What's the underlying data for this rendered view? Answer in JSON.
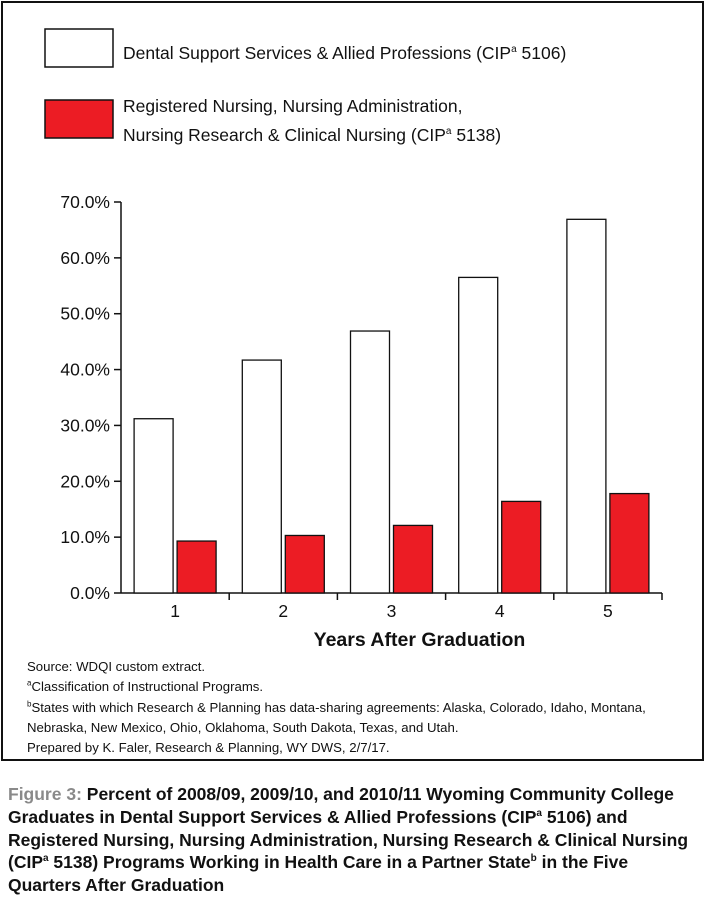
{
  "chart_data": {
    "type": "bar",
    "categories": [
      "1",
      "2",
      "3",
      "4",
      "5"
    ],
    "series": [
      {
        "name": "Dental Support Services & Allied Professions (CIPᵃ 5106)",
        "name_main": "Dental Support Services & Allied Professions (CIP",
        "name_sup": "a",
        "name_tail": " 5106)",
        "color": "#ffffff",
        "values": [
          31.2,
          41.7,
          46.9,
          56.5,
          66.9
        ]
      },
      {
        "name": "Registered Nursing, Nursing Administration, Nursing Research & Clinical Nursing (CIPᵃ 5138)",
        "name_line1": "Registered Nursing, Nursing Administration,",
        "name_line2_main": "Nursing Research & Clinical Nursing (CIP",
        "name_sup": "a",
        "name_line2_tail": " 5138)",
        "color": "#ec1c24",
        "values": [
          9.3,
          10.3,
          12.1,
          16.4,
          17.8
        ]
      }
    ],
    "xlabel": "Years After Graduation",
    "ylabel": "",
    "ylim": [
      0,
      70
    ],
    "yticks": [
      "0.0%",
      "10.0%",
      "20.0%",
      "30.0%",
      "40.0%",
      "50.0%",
      "60.0%",
      "70.0%"
    ],
    "grid": false,
    "legend_position": "top"
  },
  "notes": {
    "source": "Source: WDQI custom extract.",
    "note_a_sup": "a",
    "note_a": "Classification of Instructional Programs.",
    "note_b_sup": "b",
    "note_b": "States with which Research & Planning has data-sharing agreements: Alaska, Colorado, Idaho, Montana, Nebraska, New Mexico, Ohio, Oklahoma, South Dakota, Texas, and Utah.",
    "prepared": "Prepared by K. Faler, Research & Planning, WY DWS, 2/7/17."
  },
  "caption": {
    "label": "Figure 3: ",
    "part1": "Percent of 2008/09, 2009/10, and  2010/11 Wyoming Community College Graduates in Dental Support Services & Allied Professions (CIP",
    "sup1": "a",
    "part2": " 5106) and Registered Nursing, Nursing Administration, Nursing Research & Clinical Nursing (CIP",
    "sup2": "a",
    "part3": " 5138) Programs Working in Health Care in a Partner State",
    "sup3": "b",
    "part4": " in the Five Quarters After Graduation"
  }
}
